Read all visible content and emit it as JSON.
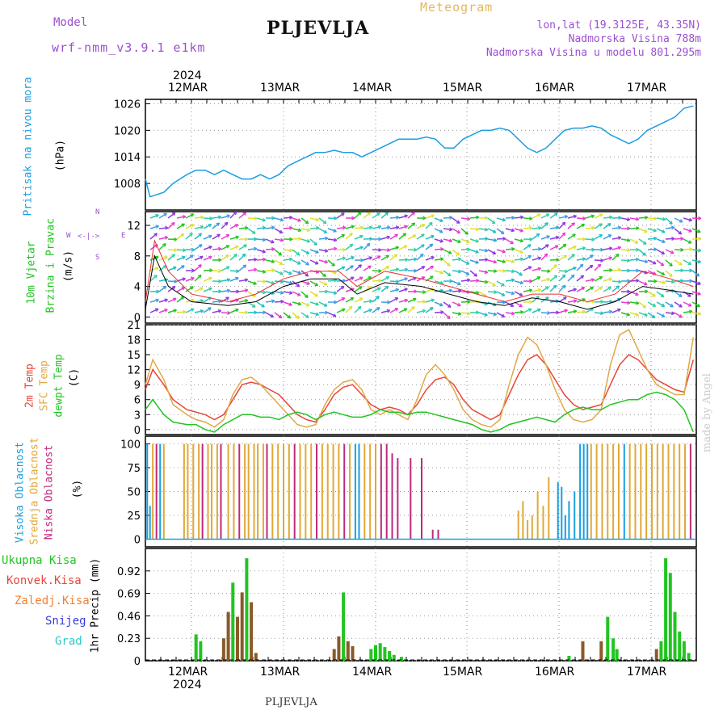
{
  "header": {
    "model_label": "Model",
    "model_name": "wrf-nmm_v3.9.1 e1km",
    "station": "PLJEVLJA",
    "title": "Meteogram",
    "lonlat": "lon,lat (19.3125E, 43.35N)",
    "altitude": "Nadmorska Visina 788m",
    "model_altitude": "Nadmorska Visina u modelu 801.295m",
    "bottom_station": "PLJEVLJA",
    "watermark": "made by Angel"
  },
  "colors": {
    "pressure": "#1a9fe0",
    "temp2m": "#e8463a",
    "tempsfc": "#e0a848",
    "dewpt": "#22c422",
    "wind_black": "#000000",
    "wind_red": "#e83030",
    "cloud_high": "#1a9fe0",
    "cloud_mid": "#e0a838",
    "cloud_low": "#c0287a",
    "precip_total": "#22c422",
    "precip_conv": "#e8463a",
    "precip_frozen": "#f08030",
    "snow": "#3a3ae0",
    "grad": "#30c8c8",
    "purple": "#9b4fd0"
  },
  "axes": {
    "year": "2024",
    "days_top": [
      "12MAR",
      "13MAR",
      "14MAR",
      "15MAR",
      "16MAR",
      "17MAR"
    ],
    "days_bottom": [
      "12MAR",
      "13MAR",
      "14MAR",
      "15MAR",
      "16MAR",
      "17MAR"
    ]
  },
  "panels": {
    "pressure": {
      "label": "Pritisak na nivou mora",
      "unit": "(hPa)",
      "ticks": [
        "1008",
        "1014",
        "1020",
        "1026"
      ]
    },
    "wind": {
      "label1": "10m Vjetar",
      "label2": "Brzina i Pravac",
      "unit": "(m/s)",
      "ticks": [
        "0",
        "4",
        "8",
        "12"
      ],
      "compass_n": "N",
      "compass_s": "S",
      "compass_w": "W",
      "compass_e": "E"
    },
    "temp": {
      "label1": "2m Temp",
      "label2": "SFC Temp",
      "label3": "dewpt Temp",
      "unit": "(C)",
      "ticks": [
        "0",
        "3",
        "6",
        "9",
        "12",
        "15",
        "18",
        "21"
      ]
    },
    "cloud": {
      "label1": "Visoka Oblacnost",
      "label2": "Srednja Oblacnost",
      "label3": "Niska Oblacnost",
      "unit": "(%)",
      "ticks": [
        "0",
        "25",
        "50",
        "75",
        "100"
      ]
    },
    "precip": {
      "legend": [
        "Ukupna Kisa",
        "Konvek.Kisa",
        "Zaledj.Kisa",
        "Snijeg",
        "Grad"
      ],
      "unit": "1hr Precip (mm)",
      "ticks": [
        "0",
        "0.23",
        "0.46",
        "0.69",
        "0.92"
      ]
    }
  },
  "chart_data": [
    {
      "type": "line",
      "series": [
        {
          "x": [
            0,
            0.05,
            0.2,
            0.3,
            0.45,
            0.55,
            0.65,
            0.75,
            0.85,
            0.95,
            1.05,
            1.15,
            1.25,
            1.35,
            1.45,
            1.55,
            1.65,
            1.75,
            1.85,
            1.95,
            2.05,
            2.15,
            2.25,
            2.35,
            2.45,
            2.55,
            2.65,
            2.75,
            2.85,
            2.95,
            3.05,
            3.15,
            3.25,
            3.35,
            3.45,
            3.55,
            3.65,
            3.75,
            3.85,
            3.95,
            4.05,
            4.15,
            4.25,
            4.35,
            4.45,
            4.55,
            4.65,
            4.75,
            4.85,
            4.95,
            5.05,
            5.15,
            5.25,
            5.35,
            5.45,
            5.55,
            5.65,
            5.75,
            5.85,
            5.95
          ],
          "values": [
            1009,
            1005,
            1006,
            1008,
            1010,
            1011,
            1011,
            1010,
            1011,
            1010,
            1009,
            1009,
            1010,
            1009,
            1010,
            1012,
            1013,
            1014,
            1015,
            1015,
            1015.5,
            1015,
            1015,
            1014,
            1015,
            1016,
            1017,
            1018,
            1018,
            1018,
            1018.5,
            1018,
            1016,
            1016,
            1018,
            1019,
            1020,
            1020,
            1020.5,
            1020,
            1018,
            1016,
            1015,
            1016,
            1018,
            1020,
            1020.5,
            1020.5,
            1021,
            1020.5,
            1019,
            1018,
            1017,
            1018,
            1020,
            1021,
            1022,
            1023,
            1025,
            1025.5
          ]
        }
      ],
      "ylim": [
        1002,
        1027
      ]
    },
    {
      "type": "line",
      "series": [
        {
          "x": [
            0,
            0.08,
            0.2,
            0.3,
            0.45,
            0.55,
            0.65,
            0.75,
            0.85,
            0.95,
            1.05,
            1.15,
            1.25,
            1.35,
            1.45,
            1.55,
            1.65,
            1.75,
            1.85,
            1.95,
            2.05,
            2.15,
            2.25,
            2.35,
            2.45,
            2.55,
            2.65,
            2.75,
            2.85,
            2.95,
            3.05,
            3.15,
            3.25,
            3.35,
            3.45,
            3.55,
            3.65,
            3.75,
            3.85,
            3.95,
            4.05,
            4.15,
            4.25,
            4.35,
            4.45,
            4.55,
            4.65,
            4.75,
            4.85,
            4.95,
            5.05,
            5.15,
            5.25,
            5.35,
            5.45,
            5.55,
            5.65,
            5.75,
            5.85,
            5.95
          ],
          "values": [
            8,
            12,
            9,
            6,
            4,
            3.5,
            3,
            2,
            3,
            6,
            9,
            9.5,
            9,
            8,
            7,
            5,
            3,
            2,
            1.5,
            4,
            7,
            8.5,
            9,
            7,
            5,
            4,
            4.5,
            4,
            3,
            5,
            8,
            10,
            10.5,
            9,
            6,
            4,
            3,
            2,
            3,
            7,
            11,
            14,
            15,
            13,
            10,
            7,
            5,
            4,
            4.5,
            5,
            9,
            13,
            15,
            14,
            12,
            10,
            9,
            8,
            7.5,
            14
          ]
        },
        {
          "x": [
            0,
            0.08,
            0.2,
            0.3,
            0.45,
            0.55,
            0.65,
            0.75,
            0.85,
            0.95,
            1.05,
            1.15,
            1.25,
            1.35,
            1.45,
            1.55,
            1.65,
            1.75,
            1.85,
            1.95,
            2.05,
            2.15,
            2.25,
            2.35,
            2.45,
            2.55,
            2.65,
            2.75,
            2.85,
            2.95,
            3.05,
            3.15,
            3.25,
            3.35,
            3.45,
            3.55,
            3.65,
            3.75,
            3.85,
            3.95,
            4.05,
            4.15,
            4.25,
            4.35,
            4.45,
            4.55,
            4.65,
            4.75,
            4.85,
            4.95,
            5.05,
            5.15,
            5.25,
            5.35,
            5.45,
            5.55,
            5.65,
            5.75,
            5.85,
            5.95
          ],
          "values": [
            9,
            14,
            10,
            5,
            3,
            2,
            1.5,
            0.5,
            2,
            7,
            10,
            10.5,
            9,
            7,
            5,
            3,
            1,
            0.5,
            1,
            5,
            8,
            9.5,
            10,
            8,
            4,
            3,
            4,
            3,
            2,
            6,
            11,
            13,
            11,
            8,
            4,
            2,
            1,
            0.5,
            2,
            9,
            15,
            18.5,
            17,
            13,
            8,
            4,
            2,
            1.5,
            2,
            4,
            13,
            19,
            20,
            16,
            12,
            9,
            8,
            7,
            7,
            18.5
          ]
        },
        {
          "x": [
            0,
            0.08,
            0.2,
            0.3,
            0.45,
            0.55,
            0.65,
            0.75,
            0.85,
            0.95,
            1.05,
            1.15,
            1.25,
            1.35,
            1.45,
            1.55,
            1.65,
            1.75,
            1.85,
            1.95,
            2.05,
            2.15,
            2.25,
            2.35,
            2.45,
            2.55,
            2.65,
            2.75,
            2.85,
            2.95,
            3.05,
            3.15,
            3.25,
            3.35,
            3.45,
            3.55,
            3.65,
            3.75,
            3.85,
            3.95,
            4.05,
            4.15,
            4.25,
            4.35,
            4.45,
            4.55,
            4.65,
            4.75,
            4.85,
            4.95,
            5.05,
            5.15,
            5.25,
            5.35,
            5.45,
            5.55,
            5.65,
            5.75,
            5.85,
            5.95
          ],
          "values": [
            4,
            6,
            3,
            1.5,
            1,
            1,
            0,
            -0.5,
            1,
            2,
            3,
            3,
            2.5,
            2.5,
            2,
            3,
            3.5,
            3,
            2,
            3,
            3.5,
            3,
            2.5,
            2.5,
            3,
            4,
            3.5,
            3.5,
            3,
            3.5,
            3.5,
            3,
            2.5,
            2,
            1.5,
            1,
            0,
            -0.5,
            0,
            1,
            1.5,
            2,
            2.5,
            2,
            1.5,
            3,
            4,
            4.5,
            4,
            4,
            5,
            5.5,
            6,
            6,
            7,
            7.5,
            7,
            6,
            4,
            -0.5
          ]
        }
      ],
      "ylim": [
        -1,
        21
      ]
    }
  ]
}
